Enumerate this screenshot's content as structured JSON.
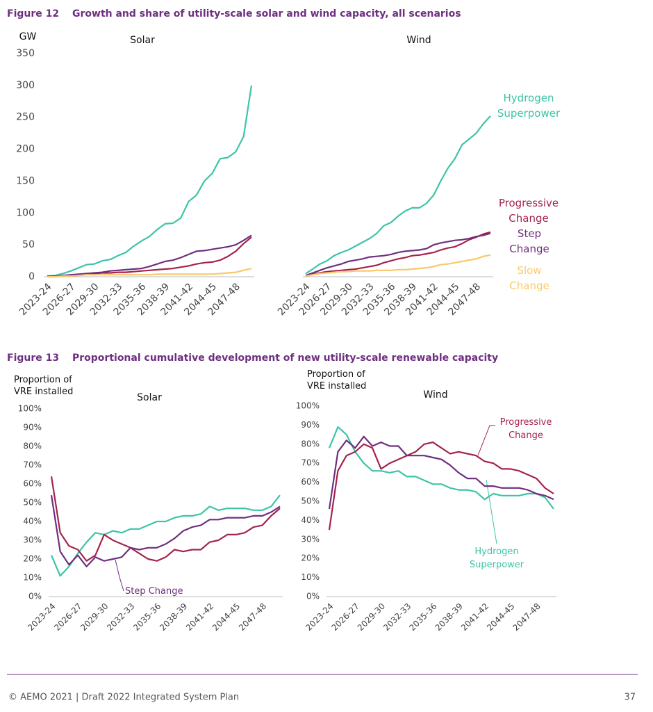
{
  "figures": [
    {
      "number": "Figure 12",
      "title": "Growth and share of utility-scale solar and wind capacity, all scenarios"
    },
    {
      "number": "Figure 13",
      "title": "Proportional cumulative development of new utility-scale renewable capacity"
    }
  ],
  "footer": {
    "left": "© AEMO 2021 | Draft 2022 Integrated System Plan",
    "page": "37"
  },
  "chart_data": [
    {
      "type": "line",
      "title": "Solar",
      "y_label": "GW",
      "ylim": [
        0,
        350
      ],
      "yticks": [
        0,
        50,
        100,
        150,
        200,
        250,
        300,
        350
      ],
      "categories": [
        "2023-24",
        null,
        null,
        "2026-27",
        null,
        null,
        "2029-30",
        null,
        null,
        "2032-33",
        null,
        null,
        "2035-36",
        null,
        null,
        "2038-39",
        null,
        null,
        "2041-42",
        null,
        null,
        "2044-45",
        null,
        null,
        "2047-48",
        null,
        null
      ],
      "series": [
        {
          "name": "Hydrogen Superpower",
          "color": "#3cc4a6",
          "values": [
            1,
            2,
            5,
            9,
            14,
            19,
            20,
            25,
            27,
            33,
            38,
            48,
            56,
            63,
            74,
            83,
            84,
            92,
            118,
            128,
            150,
            162,
            185,
            187,
            196,
            220,
            300
          ]
        },
        {
          "name": "Progressive Change",
          "color": "#a5234b",
          "values": [
            1,
            1,
            1,
            2,
            3,
            4,
            5,
            6,
            6,
            7,
            7,
            8,
            9,
            10,
            11,
            12,
            13,
            15,
            17,
            20,
            22,
            23,
            26,
            32,
            40,
            52,
            62
          ]
        },
        {
          "name": "Step Change",
          "color": "#6e2f80",
          "values": [
            1,
            1,
            2,
            3,
            4,
            5,
            6,
            7,
            9,
            10,
            11,
            12,
            13,
            16,
            20,
            24,
            26,
            30,
            35,
            40,
            41,
            43,
            45,
            47,
            50,
            57,
            65
          ]
        },
        {
          "name": "Slow Change",
          "color": "#f9c86a",
          "values": [
            0,
            0,
            1,
            1,
            2,
            3,
            3,
            3,
            3,
            3,
            3,
            3,
            3,
            3,
            4,
            4,
            4,
            4,
            4,
            4,
            4,
            4,
            5,
            6,
            7,
            10,
            13
          ]
        }
      ]
    },
    {
      "type": "line",
      "title": "Wind",
      "ylim": [
        0,
        350
      ],
      "categories": [
        "2023-24",
        null,
        null,
        "2026-27",
        null,
        null,
        "2029-30",
        null,
        null,
        "2032-33",
        null,
        null,
        "2035-36",
        null,
        null,
        "2038-39",
        null,
        null,
        "2041-42",
        null,
        null,
        "2044-45",
        null,
        null,
        "2047-48",
        null,
        null
      ],
      "series": [
        {
          "name": "Hydrogen Superpower",
          "color": "#3cc4a6",
          "values": [
            5,
            12,
            20,
            25,
            33,
            38,
            42,
            48,
            54,
            60,
            68,
            80,
            85,
            95,
            103,
            108,
            108,
            115,
            128,
            150,
            170,
            185,
            207,
            216,
            225,
            240,
            252
          ]
        },
        {
          "name": "Progressive Change",
          "color": "#a5234b",
          "values": [
            1,
            4,
            6,
            8,
            9,
            10,
            11,
            12,
            14,
            16,
            18,
            22,
            25,
            28,
            30,
            33,
            34,
            36,
            38,
            42,
            45,
            47,
            52,
            58,
            62,
            67,
            70
          ]
        },
        {
          "name": "Step Change",
          "color": "#6e2f80",
          "values": [
            2,
            6,
            10,
            14,
            17,
            20,
            24,
            26,
            28,
            31,
            32,
            33,
            35,
            38,
            40,
            41,
            42,
            44,
            50,
            53,
            55,
            57,
            58,
            60,
            63,
            65,
            68
          ]
        },
        {
          "name": "Slow Change",
          "color": "#f9c86a",
          "values": [
            1,
            3,
            5,
            6,
            7,
            8,
            8,
            9,
            9,
            9,
            10,
            10,
            10,
            11,
            11,
            12,
            13,
            14,
            16,
            19,
            20,
            22,
            24,
            26,
            28,
            32,
            34
          ]
        }
      ]
    },
    {
      "type": "line",
      "title": "Solar",
      "y_label": "Proportion of VRE installed",
      "ylim": [
        0,
        100
      ],
      "yticks": [
        {
          "value": 0,
          "label": "0%"
        },
        {
          "value": 10,
          "label": "10%"
        },
        {
          "value": 20,
          "label": "20%"
        },
        {
          "value": 30,
          "label": "30%"
        },
        {
          "value": 40,
          "label": "40%"
        },
        {
          "value": 50,
          "label": "50%"
        },
        {
          "value": 60,
          "label": "60%"
        },
        {
          "value": 70,
          "label": "70%"
        },
        {
          "value": 80,
          "label": "80%"
        },
        {
          "value": 90,
          "label": "90%"
        },
        {
          "value": 100,
          "label": "100%"
        }
      ],
      "categories": [
        "2023-24",
        null,
        null,
        "2026-27",
        null,
        null,
        "2029-30",
        null,
        null,
        "2032-33",
        null,
        null,
        "2035-36",
        null,
        null,
        "2038-39",
        null,
        null,
        "2041-42",
        null,
        null,
        "2044-45",
        null,
        null,
        "2047-48",
        null,
        null
      ],
      "series": [
        {
          "name": "Hydrogen Superpower",
          "color": "#3cc4a6",
          "values": [
            22,
            11,
            16,
            23,
            29,
            34,
            33,
            35,
            34,
            36,
            36,
            38,
            40,
            40,
            42,
            43,
            43,
            44,
            48,
            46,
            47,
            47,
            47,
            46,
            46,
            48,
            54
          ]
        },
        {
          "name": "Progressive Change",
          "color": "#a5234b",
          "values": [
            64,
            34,
            27,
            25,
            19,
            22,
            33,
            30,
            28,
            26,
            23,
            20,
            19,
            21,
            25,
            24,
            25,
            25,
            29,
            30,
            33,
            33,
            34,
            37,
            38,
            43,
            47
          ]
        },
        {
          "name": "Step Change",
          "color": "#6e2f80",
          "values": [
            54,
            24,
            17,
            22,
            16,
            21,
            19,
            20,
            21,
            26,
            25,
            26,
            26,
            28,
            31,
            35,
            37,
            38,
            41,
            41,
            42,
            42,
            42,
            43,
            43,
            45,
            48
          ]
        }
      ]
    },
    {
      "type": "line",
      "title": "Wind",
      "y_label": "Proportion of VRE installed",
      "ylim": [
        0,
        100
      ],
      "yticks": [
        {
          "value": 0,
          "label": "0%"
        },
        {
          "value": 10,
          "label": "10%"
        },
        {
          "value": 20,
          "label": "20%"
        },
        {
          "value": 30,
          "label": "30%"
        },
        {
          "value": 40,
          "label": "40%"
        },
        {
          "value": 50,
          "label": "50%"
        },
        {
          "value": 60,
          "label": "60%"
        },
        {
          "value": 70,
          "label": "70%"
        },
        {
          "value": 80,
          "label": "80%"
        },
        {
          "value": 90,
          "label": "90%"
        },
        {
          "value": 100,
          "label": "100%"
        }
      ],
      "categories": [
        "2023-24",
        null,
        null,
        "2026-27",
        null,
        null,
        "2029-30",
        null,
        null,
        "2032-33",
        null,
        null,
        "2035-36",
        null,
        null,
        "2038-39",
        null,
        null,
        "2041-42",
        null,
        null,
        "2044-45",
        null,
        null,
        "2047-48",
        null,
        null
      ],
      "series": [
        {
          "name": "Hydrogen Superpower",
          "color": "#3cc4a6",
          "values": [
            78,
            89,
            85,
            76,
            70,
            66,
            66,
            65,
            66,
            63,
            63,
            61,
            59,
            59,
            57,
            56,
            56,
            55,
            51,
            54,
            53,
            53,
            53,
            54,
            54,
            52,
            46
          ]
        },
        {
          "name": "Progressive Change",
          "color": "#a5234b",
          "values": [
            35,
            66,
            74,
            76,
            80,
            78,
            67,
            70,
            72,
            74,
            76,
            80,
            81,
            78,
            75,
            76,
            75,
            74,
            71,
            70,
            67,
            67,
            66,
            64,
            62,
            57,
            54
          ]
        },
        {
          "name": "Step Change",
          "color": "#6e2f80",
          "values": [
            46,
            76,
            82,
            78,
            84,
            79,
            81,
            79,
            79,
            74,
            74,
            74,
            73,
            72,
            69,
            65,
            62,
            62,
            58,
            58,
            57,
            57,
            57,
            56,
            54,
            53,
            51
          ]
        }
      ]
    }
  ]
}
